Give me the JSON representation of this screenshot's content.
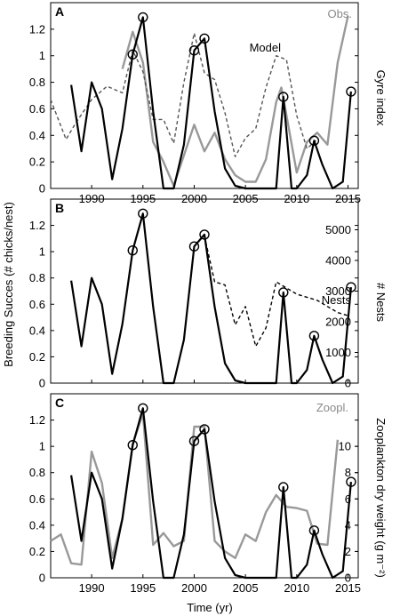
{
  "figure": {
    "ylabel_left": "Breeding Succes (# chicks/nest)",
    "xlabel": "Time (yr)"
  },
  "chart_data": [
    {
      "type": "line",
      "panel": "A",
      "ylabel_right": "Gyre index",
      "xlim": [
        1986,
        2016
      ],
      "xticks": [
        1990,
        1995,
        2000,
        2005,
        2010,
        2015
      ],
      "ylim": [
        0,
        1.4
      ],
      "yticks": [
        0,
        0.2,
        0.4,
        0.6,
        0.8,
        1,
        1.2
      ],
      "series": [
        {
          "name": "Obs.",
          "axis": "left",
          "color": "#999999",
          "style": "solid",
          "x": [
            1993,
            1994,
            1995,
            1996,
            1997,
            1998,
            1999,
            2000,
            2001,
            2002,
            2003,
            2004,
            2005,
            2006,
            2007,
            2008,
            2008.5,
            2009,
            2010,
            2011,
            2012,
            2013,
            2014,
            2015
          ],
          "y": [
            0.9,
            1.18,
            0.95,
            0.35,
            0.2,
            0.02,
            0.25,
            0.48,
            0.28,
            0.42,
            0.22,
            0.1,
            0.05,
            0.05,
            0.22,
            0.65,
            0.76,
            0.55,
            0.12,
            0.35,
            0.42,
            0.33,
            0.95,
            1.3
          ]
        },
        {
          "name": "Model",
          "axis": "left",
          "color": "#555555",
          "style": "dashed",
          "x": [
            1986,
            1987.5,
            1988.5,
            1990,
            1991.5,
            1993,
            1994,
            1995,
            1996,
            1997,
            1998,
            1999,
            2000,
            2001,
            2002,
            2003,
            2004,
            2005,
            2006,
            2007,
            2008,
            2009,
            2010,
            2011,
            2012
          ],
          "y": [
            0.67,
            0.37,
            0.5,
            0.67,
            0.77,
            0.72,
            1.04,
            0.88,
            0.52,
            0.52,
            0.34,
            0.8,
            1.17,
            0.87,
            0.82,
            0.57,
            0.24,
            0.38,
            0.45,
            0.76,
            1.0,
            0.97,
            0.55,
            0.3,
            0.37
          ]
        },
        {
          "name": "",
          "axis": "left",
          "color": "#000000",
          "style": "solid",
          "x": [
            1988,
            1989,
            1990,
            1991,
            1992,
            1993,
            1994,
            1995,
            1996,
            1997,
            1998,
            1999,
            2000,
            2001,
            2002,
            2003,
            2004,
            2005,
            2006,
            2007,
            2008,
            2008.7,
            2009.5,
            2010,
            2011,
            2011.7,
            2012.5,
            2013.5,
            2014.5,
            2015.3
          ],
          "y": [
            0.78,
            0.28,
            0.8,
            0.6,
            0.07,
            0.45,
            1.01,
            1.29,
            0.58,
            0,
            0,
            0.33,
            1.04,
            1.13,
            0.58,
            0.15,
            0.02,
            0,
            0,
            0,
            0,
            0.69,
            0,
            0,
            0.1,
            0.36,
            0.18,
            0,
            0.05,
            0.73
          ]
        }
      ],
      "circled_points": [
        [
          1994,
          1.01
        ],
        [
          1995,
          1.29
        ],
        [
          2000,
          1.04
        ],
        [
          2001,
          1.13
        ],
        [
          2008.7,
          0.69
        ],
        [
          2011.7,
          0.36
        ],
        [
          2015.3,
          0.73
        ]
      ]
    },
    {
      "type": "line",
      "panel": "B",
      "ylabel_right": "# Nests",
      "xlim": [
        1986,
        2016
      ],
      "ylim": [
        0,
        1.4
      ],
      "yticks": [
        0,
        0.2,
        0.4,
        0.6,
        0.8,
        1,
        1.2
      ],
      "ylim_right": [
        0,
        6000
      ],
      "yticks_right": [
        0,
        1000,
        2000,
        3000,
        4000,
        5000
      ],
      "series": [
        {
          "name": "",
          "axis": "left",
          "color": "#000000",
          "style": "solid",
          "x": [
            1988,
            1989,
            1990,
            1991,
            1992,
            1993,
            1994,
            1995,
            1996,
            1997,
            1998,
            1999,
            2000,
            2001,
            2002,
            2003,
            2004,
            2005,
            2006,
            2007,
            2008,
            2008.7,
            2009.5,
            2010,
            2011,
            2011.7,
            2012.5,
            2013.5,
            2014.5,
            2015.3
          ],
          "y": [
            0.78,
            0.28,
            0.8,
            0.6,
            0.07,
            0.45,
            1.01,
            1.29,
            0.58,
            0,
            0,
            0.33,
            1.04,
            1.13,
            0.58,
            0.15,
            0.02,
            0,
            0,
            0,
            0,
            0.69,
            0,
            0,
            0.1,
            0.36,
            0.18,
            0,
            0.05,
            0.73
          ]
        },
        {
          "name": "Nests",
          "axis": "right",
          "color": "#000000",
          "style": "dashed",
          "x": [
            2001,
            2002,
            2003,
            2004,
            2005,
            2006,
            2007,
            2008,
            2009,
            2010,
            2011,
            2012,
            2013,
            2014,
            2015
          ],
          "y": [
            4800,
            3300,
            3200,
            1900,
            2500,
            1200,
            1800,
            3300,
            3100,
            2900,
            2800,
            2700,
            2500,
            2300,
            2200
          ]
        }
      ],
      "circled_points": [
        [
          1994,
          1.01
        ],
        [
          1995,
          1.29
        ],
        [
          2000,
          1.04
        ],
        [
          2001,
          1.13
        ],
        [
          2008.7,
          0.69
        ],
        [
          2011.7,
          0.36
        ],
        [
          2015.3,
          0.73
        ]
      ]
    },
    {
      "type": "line",
      "panel": "C",
      "ylabel_right": "Zooplankton dry weight (g m⁻²)",
      "xlim": [
        1986,
        2016
      ],
      "xticks": [
        1990,
        1995,
        2000,
        2005,
        2010,
        2015
      ],
      "ylim": [
        0,
        1.4
      ],
      "yticks": [
        0,
        0.2,
        0.4,
        0.6,
        0.8,
        1,
        1.2
      ],
      "ylim_right": [
        0,
        14
      ],
      "yticks_right": [
        0,
        2,
        4,
        6,
        8,
        10
      ],
      "series": [
        {
          "name": "Zoopl.",
          "axis": "right",
          "color": "#999999",
          "style": "solid",
          "x": [
            1986,
            1987,
            1988,
            1989,
            1990,
            1991,
            1992,
            1993,
            1994,
            1995,
            1996,
            1997,
            1998,
            1999,
            2000,
            2001,
            2002,
            2003,
            2004,
            2005,
            2006,
            2007,
            2008,
            2009,
            2010,
            2011,
            2012,
            2013,
            2014
          ],
          "y": [
            2.8,
            3.3,
            1.1,
            1.0,
            9.6,
            7.2,
            1.5,
            4.5,
            10.2,
            12.5,
            2.5,
            3.4,
            2.4,
            2.8,
            11.5,
            11.5,
            2.8,
            2.0,
            1.5,
            3.3,
            2.8,
            5.0,
            6.3,
            5.4,
            5.3,
            5.1,
            2.6,
            2.5,
            10.5
          ]
        },
        {
          "name": "",
          "axis": "left",
          "color": "#000000",
          "style": "solid",
          "x": [
            1988,
            1989,
            1990,
            1991,
            1992,
            1993,
            1994,
            1995,
            1996,
            1997,
            1998,
            1999,
            2000,
            2001,
            2002,
            2003,
            2004,
            2005,
            2006,
            2007,
            2008,
            2008.7,
            2009.5,
            2010,
            2011,
            2011.7,
            2012.5,
            2013.5,
            2014.5,
            2015.3
          ],
          "y": [
            0.78,
            0.28,
            0.8,
            0.6,
            0.07,
            0.45,
            1.01,
            1.29,
            0.58,
            0,
            0,
            0.33,
            1.04,
            1.13,
            0.58,
            0.15,
            0.02,
            0,
            0,
            0,
            0,
            0.69,
            0,
            0,
            0.1,
            0.36,
            0.18,
            0,
            0.05,
            0.73
          ]
        }
      ],
      "circled_points": [
        [
          1994,
          1.01
        ],
        [
          1995,
          1.29
        ],
        [
          2000,
          1.04
        ],
        [
          2001,
          1.13
        ],
        [
          2008.7,
          0.69
        ],
        [
          2011.7,
          0.36
        ],
        [
          2015.3,
          0.73
        ]
      ]
    }
  ]
}
